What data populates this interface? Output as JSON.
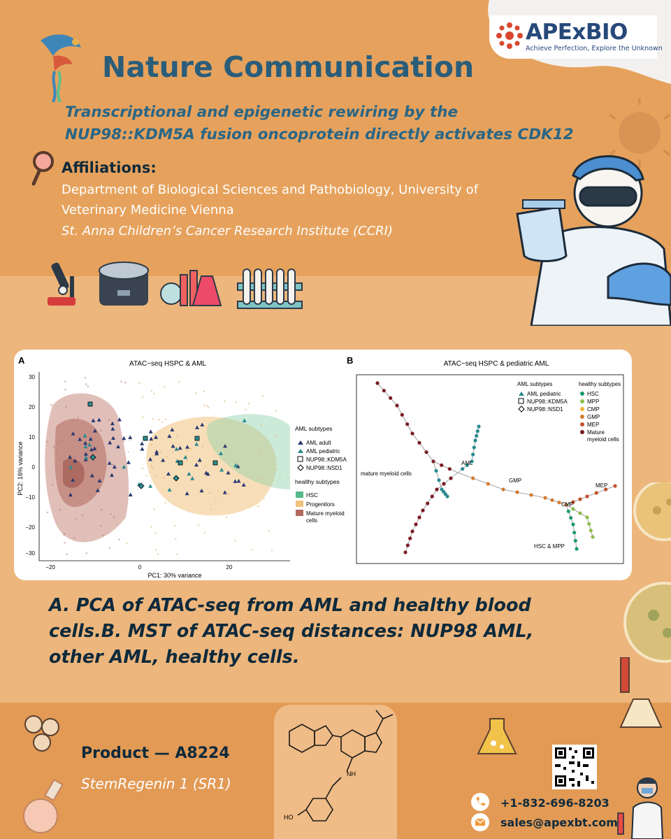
{
  "brand": {
    "name": "APExBIO",
    "tagline": "Achieve Perfection, Explore the Unknown"
  },
  "journal": "Nature Communication",
  "article_title": [
    "Transcriptional and epigenetic rewiring by the",
    "NUP98::KDM5A fusion oncoprotein directly activates CDK12"
  ],
  "affiliations": {
    "heading": "Affiliations:",
    "lines": [
      "Department of Biological Sciences and Pathobiology, University of",
      "Veterinary Medicine Vienna",
      "St. Anna Children’s Cancer Research Institute (CCRI)"
    ]
  },
  "figure": {
    "panel_a": {
      "label": "A",
      "title": "ATAC−seq HSPC & AML",
      "xlabel": "PC1: 30% variance",
      "ylabel": "PC2: 16% variance",
      "x_ticks": [
        "−20",
        "0",
        "20"
      ],
      "y_ticks": [
        "30",
        "20",
        "10",
        "0",
        "−10",
        "−20",
        "−30"
      ],
      "legend_aml_title": "AML subtypes",
      "legend_aml": [
        "AML adult",
        "AML pediatric",
        "NUP98::KDM5A",
        "NUP98::NSD1"
      ],
      "legend_healthy_title": "healthy subtypes",
      "legend_healthy": [
        "HSC",
        "Progenitors",
        "Mature myeloid",
        "cells"
      ]
    },
    "panel_b": {
      "label": "B",
      "title": "ATAC−seq HSPC & pediatric AML",
      "legend_aml_title": "AML subtypes",
      "legend_aml": [
        "AML pediatric",
        "NUP98::KDM5A",
        "NUP98::NSD1"
      ],
      "legend_healthy_title": "healthy subtypes",
      "legend_healthy": [
        "HSC",
        "MPP",
        "CMP",
        "GMP",
        "MEP",
        "Mature",
        "myeloid cells"
      ],
      "branch_labels": [
        "AML",
        "mature myeloid cells",
        "GMP",
        "MEP",
        "CMP",
        "HSC & MPP"
      ]
    }
  },
  "caption": [
    "A. PCA of ATAC-seq from AML and healthy blood",
    "cells.B. MST of ATAC-seq distances: NUP98 AML,",
    "other AML, healthy cells."
  ],
  "product": {
    "label": "Product — A8224",
    "name": "StemRegenin 1 (SR1)"
  },
  "chemical_labels": [
    "NH",
    "HO"
  ],
  "contact": {
    "phone": "+1-832-696-8203",
    "email": "sales@apexbt.com"
  },
  "colors": {
    "title": "#2a5d7a",
    "subtitle": "#2a6686",
    "background": "#e6a25d",
    "aml": "#2b3a70",
    "aml_pediatric": "#2a8a8e",
    "hsc": "#58b98c",
    "progenitors": "#f3c27d",
    "mature": "#b3695f"
  }
}
